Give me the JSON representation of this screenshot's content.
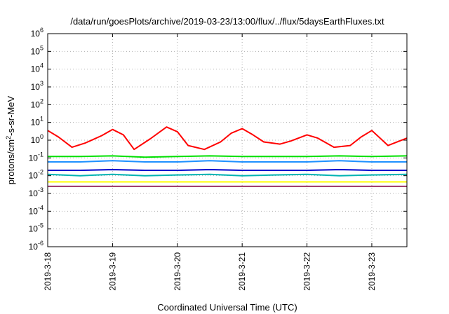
{
  "chart_data": {
    "type": "line",
    "title": "/data/run/goesPlots/archive/2019-03-23/13:00/flux/../flux/5daysEarthFluxes.txt",
    "xlabel": "Coordinated Universal Time (UTC)",
    "ylabel": "protons/cm²-s-sr-MeV",
    "ylabel_parts": {
      "pre": "protons/cm",
      "sup": "2",
      "post": "-s-sr-MeV"
    },
    "yscale": "log",
    "ylim": [
      1e-06,
      1000000.0
    ],
    "y_ticks": [
      {
        "exp": -6,
        "base": "10",
        "sup": "-6"
      },
      {
        "exp": -5,
        "base": "10",
        "sup": "-5"
      },
      {
        "exp": -4,
        "base": "10",
        "sup": "-4"
      },
      {
        "exp": -3,
        "base": "10",
        "sup": "-3"
      },
      {
        "exp": -2,
        "base": "10",
        "sup": "-2"
      },
      {
        "exp": -1,
        "base": "10",
        "sup": "-1"
      },
      {
        "exp": 0,
        "base": "10",
        "sup": "0"
      },
      {
        "exp": 1,
        "base": "10",
        "sup": "1"
      },
      {
        "exp": 2,
        "base": "10",
        "sup": "2"
      },
      {
        "exp": 3,
        "base": "10",
        "sup": "3"
      },
      {
        "exp": 4,
        "base": "10",
        "sup": "4"
      },
      {
        "exp": 5,
        "base": "10",
        "sup": "5"
      },
      {
        "exp": 6,
        "base": "10",
        "sup": "6"
      }
    ],
    "xlim": [
      "2019-03-18T00:00",
      "2019-03-23T13:00"
    ],
    "x_ticks": [
      "2019-3-18",
      "2019-3-19",
      "2019-3-20",
      "2019-3-21",
      "2019-3-22",
      "2019-3-23"
    ],
    "grid": true,
    "series": [
      {
        "color": "#ff0000",
        "x": [
          "2019-03-18T00:00",
          "2019-03-18T04:00",
          "2019-03-18T09:00",
          "2019-03-18T14:00",
          "2019-03-18T20:00",
          "2019-03-19T00:00",
          "2019-03-19T04:00",
          "2019-03-19T08:00",
          "2019-03-19T14:00",
          "2019-03-19T20:00",
          "2019-03-20T00:00",
          "2019-03-20T04:00",
          "2019-03-20T10:00",
          "2019-03-20T16:00",
          "2019-03-20T20:00",
          "2019-03-21T00:00",
          "2019-03-21T04:00",
          "2019-03-21T08:00",
          "2019-03-21T14:00",
          "2019-03-21T18:00",
          "2019-03-22T00:00",
          "2019-03-22T04:00",
          "2019-03-22T10:00",
          "2019-03-22T16:00",
          "2019-03-22T20:00",
          "2019-03-23T00:00",
          "2019-03-23T06:00",
          "2019-03-23T13:00"
        ],
        "values": [
          3.5,
          1.5,
          0.4,
          0.7,
          1.8,
          4.0,
          2.0,
          0.3,
          1.2,
          5.5,
          3.0,
          0.5,
          0.3,
          0.8,
          2.5,
          4.5,
          2.0,
          0.8,
          0.6,
          0.9,
          2.0,
          1.3,
          0.4,
          0.5,
          1.5,
          3.5,
          0.5,
          1.3
        ]
      },
      {
        "color": "#00e000",
        "x": [
          "2019-03-18T00:00",
          "2019-03-18T12:00",
          "2019-03-19T00:00",
          "2019-03-19T12:00",
          "2019-03-20T00:00",
          "2019-03-20T12:00",
          "2019-03-21T00:00",
          "2019-03-21T12:00",
          "2019-03-22T00:00",
          "2019-03-22T12:00",
          "2019-03-23T00:00",
          "2019-03-23T13:00"
        ],
        "values": [
          0.12,
          0.12,
          0.13,
          0.11,
          0.12,
          0.13,
          0.12,
          0.12,
          0.12,
          0.13,
          0.12,
          0.13
        ]
      },
      {
        "color": "#1e90ff",
        "x": [
          "2019-03-18T00:00",
          "2019-03-18T12:00",
          "2019-03-19T00:00",
          "2019-03-19T12:00",
          "2019-03-20T00:00",
          "2019-03-20T12:00",
          "2019-03-21T00:00",
          "2019-03-21T12:00",
          "2019-03-22T00:00",
          "2019-03-22T12:00",
          "2019-03-23T00:00",
          "2019-03-23T13:00"
        ],
        "values": [
          0.06,
          0.06,
          0.07,
          0.06,
          0.06,
          0.07,
          0.06,
          0.06,
          0.06,
          0.07,
          0.06,
          0.06
        ]
      },
      {
        "color": "#0000cc",
        "x": [
          "2019-03-18T00:00",
          "2019-03-18T12:00",
          "2019-03-19T00:00",
          "2019-03-19T12:00",
          "2019-03-20T00:00",
          "2019-03-20T12:00",
          "2019-03-21T00:00",
          "2019-03-21T12:00",
          "2019-03-22T00:00",
          "2019-03-22T12:00",
          "2019-03-23T00:00",
          "2019-03-23T13:00"
        ],
        "values": [
          0.02,
          0.02,
          0.022,
          0.02,
          0.02,
          0.022,
          0.02,
          0.02,
          0.02,
          0.022,
          0.02,
          0.02
        ]
      },
      {
        "color": "#00b3b3",
        "x": [
          "2019-03-18T00:00",
          "2019-03-18T12:00",
          "2019-03-19T00:00",
          "2019-03-19T12:00",
          "2019-03-20T00:00",
          "2019-03-20T12:00",
          "2019-03-21T00:00",
          "2019-03-21T12:00",
          "2019-03-22T00:00",
          "2019-03-22T12:00",
          "2019-03-23T00:00",
          "2019-03-23T13:00"
        ],
        "values": [
          0.012,
          0.01,
          0.012,
          0.01,
          0.011,
          0.012,
          0.01,
          0.011,
          0.012,
          0.01,
          0.011,
          0.012
        ]
      },
      {
        "color": "#ffff00",
        "x": [
          "2019-03-18T00:00",
          "2019-03-19T00:00",
          "2019-03-20T00:00",
          "2019-03-21T00:00",
          "2019-03-22T00:00",
          "2019-03-23T00:00",
          "2019-03-23T13:00"
        ],
        "values": [
          0.0045,
          0.0045,
          0.0045,
          0.0045,
          0.0045,
          0.0045,
          0.0045
        ]
      },
      {
        "color": "#993366",
        "x": [
          "2019-03-18T00:00",
          "2019-03-18T08:00",
          "2019-03-19T00:00",
          "2019-03-19T08:00",
          "2019-03-20T00:00",
          "2019-03-20T12:00",
          "2019-03-20T20:00",
          "2019-03-21T00:00",
          "2019-03-21T12:00",
          "2019-03-22T00:00",
          "2019-03-22T12:00",
          "2019-03-23T00:00",
          "2019-03-23T13:00"
        ],
        "values": [
          0.0025,
          0.0025,
          0.0025,
          0.0025,
          0.0025,
          0.0025,
          0.0025,
          0.0025,
          0.0025,
          0.0025,
          0.0025,
          0.0025,
          0.0025
        ]
      }
    ]
  }
}
